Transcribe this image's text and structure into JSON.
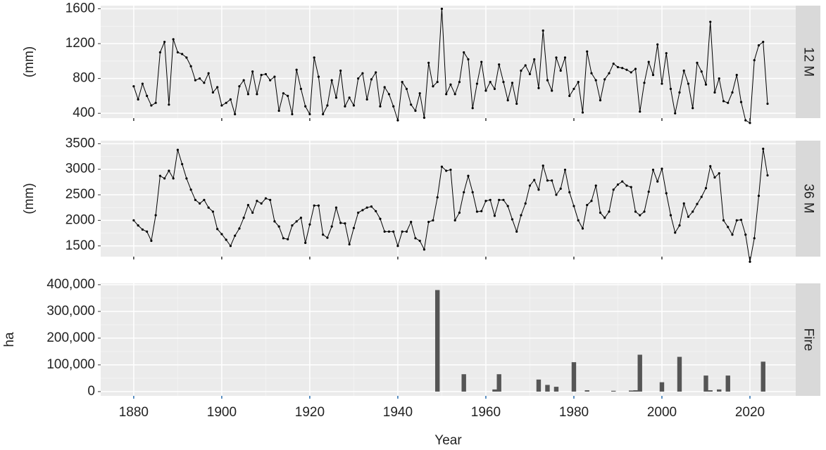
{
  "chart_data": [
    {
      "type": "line",
      "strip": "12 M",
      "ylabel": "(mm)",
      "color": "#000000",
      "x": [
        1880,
        1881,
        1882,
        1883,
        1884,
        1885,
        1886,
        1887,
        1888,
        1889,
        1890,
        1891,
        1892,
        1893,
        1894,
        1895,
        1896,
        1897,
        1898,
        1899,
        1900,
        1901,
        1902,
        1903,
        1904,
        1905,
        1906,
        1907,
        1908,
        1909,
        1910,
        1911,
        1912,
        1913,
        1914,
        1915,
        1916,
        1917,
        1918,
        1919,
        1920,
        1921,
        1922,
        1923,
        1924,
        1925,
        1926,
        1927,
        1928,
        1929,
        1930,
        1931,
        1932,
        1933,
        1934,
        1935,
        1936,
        1937,
        1938,
        1939,
        1940,
        1941,
        1942,
        1943,
        1944,
        1945,
        1946,
        1947,
        1948,
        1949,
        1950,
        1951,
        1952,
        1953,
        1954,
        1955,
        1956,
        1957,
        1958,
        1959,
        1960,
        1961,
        1962,
        1963,
        1964,
        1965,
        1966,
        1967,
        1968,
        1969,
        1970,
        1971,
        1972,
        1973,
        1974,
        1975,
        1976,
        1977,
        1978,
        1979,
        1980,
        1981,
        1982,
        1983,
        1984,
        1985,
        1986,
        1987,
        1988,
        1989,
        1990,
        1991,
        1992,
        1993,
        1994,
        1995,
        1996,
        1997,
        1998,
        1999,
        2000,
        2001,
        2002,
        2003,
        2004,
        2005,
        2006,
        2007,
        2008,
        2009,
        2010,
        2011,
        2012,
        2013,
        2014,
        2015,
        2016,
        2017,
        2018,
        2019,
        2020,
        2021,
        2022,
        2023,
        2024
      ],
      "values": [
        710,
        560,
        740,
        600,
        490,
        520,
        1100,
        1220,
        500,
        1250,
        1100,
        1080,
        1040,
        940,
        780,
        800,
        750,
        860,
        640,
        700,
        490,
        520,
        560,
        390,
        710,
        780,
        620,
        880,
        620,
        840,
        850,
        780,
        820,
        430,
        630,
        600,
        390,
        900,
        680,
        480,
        390,
        1040,
        820,
        390,
        490,
        780,
        580,
        890,
        480,
        580,
        490,
        800,
        860,
        560,
        790,
        870,
        480,
        700,
        620,
        480,
        320,
        760,
        680,
        500,
        430,
        630,
        350,
        980,
        710,
        760,
        1600,
        620,
        730,
        620,
        760,
        1100,
        1020,
        460,
        740,
        990,
        660,
        760,
        680,
        960,
        760,
        550,
        750,
        510,
        890,
        950,
        850,
        1020,
        690,
        1350,
        780,
        660,
        1040,
        890,
        1040,
        600,
        680,
        760,
        410,
        1110,
        860,
        780,
        550,
        790,
        860,
        970,
        930,
        920,
        900,
        870,
        910,
        420,
        750,
        990,
        840,
        1190,
        740,
        1090,
        680,
        400,
        640,
        890,
        740,
        460,
        980,
        880,
        730,
        1450,
        640,
        800,
        540,
        520,
        640,
        840,
        530,
        320,
        290,
        1010,
        1180,
        1220,
        510
      ],
      "xlim": [
        1872.5,
        2030.4
      ],
      "xticks": [
        1880,
        1900,
        1920,
        1940,
        1960,
        1980,
        2000,
        2020
      ],
      "ylim": [
        345,
        1636
      ],
      "yticks": [
        400,
        800,
        1200,
        1600
      ]
    },
    {
      "type": "line",
      "strip": "36 M",
      "ylabel": "(mm)",
      "color": "#000000",
      "x": [
        1880,
        1881,
        1882,
        1883,
        1884,
        1885,
        1886,
        1887,
        1888,
        1889,
        1890,
        1891,
        1892,
        1893,
        1894,
        1895,
        1896,
        1897,
        1898,
        1899,
        1900,
        1901,
        1902,
        1903,
        1904,
        1905,
        1906,
        1907,
        1908,
        1909,
        1910,
        1911,
        1912,
        1913,
        1914,
        1915,
        1916,
        1917,
        1918,
        1919,
        1920,
        1921,
        1922,
        1923,
        1924,
        1925,
        1926,
        1927,
        1928,
        1929,
        1930,
        1931,
        1932,
        1933,
        1934,
        1935,
        1936,
        1937,
        1938,
        1939,
        1940,
        1941,
        1942,
        1943,
        1944,
        1945,
        1946,
        1947,
        1948,
        1949,
        1950,
        1951,
        1952,
        1953,
        1954,
        1955,
        1956,
        1957,
        1958,
        1959,
        1960,
        1961,
        1962,
        1963,
        1964,
        1965,
        1966,
        1967,
        1968,
        1969,
        1970,
        1971,
        1972,
        1973,
        1974,
        1975,
        1976,
        1977,
        1978,
        1979,
        1980,
        1981,
        1982,
        1983,
        1984,
        1985,
        1986,
        1987,
        1988,
        1989,
        1990,
        1991,
        1992,
        1993,
        1994,
        1995,
        1996,
        1997,
        1998,
        1999,
        2000,
        2001,
        2002,
        2003,
        2004,
        2005,
        2006,
        2007,
        2008,
        2009,
        2010,
        2011,
        2012,
        2013,
        2014,
        2015,
        2016,
        2017,
        2018,
        2019,
        2020,
        2021,
        2022,
        2023,
        2024
      ],
      "values": [
        2000,
        1900,
        1820,
        1780,
        1600,
        2100,
        2870,
        2820,
        2970,
        2820,
        3380,
        3100,
        2820,
        2600,
        2400,
        2330,
        2400,
        2250,
        2170,
        1830,
        1730,
        1620,
        1500,
        1700,
        1840,
        2050,
        2300,
        2150,
        2380,
        2330,
        2430,
        2400,
        1980,
        1880,
        1650,
        1630,
        1900,
        1980,
        2050,
        1560,
        1920,
        2290,
        2290,
        1720,
        1660,
        1880,
        2250,
        1950,
        1940,
        1530,
        1850,
        2150,
        2200,
        2250,
        2270,
        2180,
        2030,
        1780,
        1780,
        1780,
        1500,
        1780,
        1780,
        1970,
        1650,
        1600,
        1430,
        1970,
        2000,
        2450,
        3050,
        2970,
        2990,
        2000,
        2150,
        2550,
        2870,
        2550,
        2170,
        2180,
        2380,
        2400,
        2090,
        2400,
        2400,
        2280,
        2020,
        1780,
        2100,
        2330,
        2680,
        2790,
        2600,
        3070,
        2780,
        2780,
        2500,
        2620,
        2990,
        2550,
        2280,
        2000,
        1840,
        2300,
        2380,
        2680,
        2150,
        2050,
        2170,
        2600,
        2700,
        2760,
        2680,
        2650,
        2170,
        2100,
        2170,
        2560,
        2990,
        2760,
        3010,
        2530,
        2100,
        1760,
        1900,
        2330,
        2070,
        2170,
        2320,
        2460,
        2630,
        3060,
        2840,
        2920,
        2000,
        1870,
        1720,
        2000,
        2010,
        1720,
        1190,
        1650,
        2480,
        3400,
        2880
      ],
      "xlim": [
        1872.5,
        2030.4
      ],
      "xticks": [
        1880,
        1900,
        1920,
        1940,
        1960,
        1980,
        2000,
        2020
      ],
      "ylim": [
        1290,
        3560
      ],
      "yticks": [
        1500,
        2000,
        2500,
        3000,
        3500
      ]
    },
    {
      "type": "bar",
      "strip": "Fire",
      "ylabel": "ha",
      "xlabel": "Year",
      "color": "#555555",
      "x": [
        1949,
        1955,
        1962,
        1963,
        1972,
        1974,
        1976,
        1980,
        1983,
        1989,
        1993,
        1994,
        1995,
        2000,
        2004,
        2010,
        2011,
        2013,
        2015,
        2023
      ],
      "values": [
        380000,
        65000,
        8000,
        65000,
        45000,
        25000,
        18000,
        110000,
        5000,
        3000,
        4000,
        5000,
        138000,
        35000,
        130000,
        60000,
        5000,
        8000,
        60000,
        112000
      ],
      "xlim": [
        1872.5,
        2030.4
      ],
      "xticks": [
        1880,
        1900,
        1920,
        1940,
        1960,
        1980,
        2000,
        2020
      ],
      "ylim": [
        -16000,
        405000
      ],
      "yticks": [
        0,
        {
          "value": 100000,
          "label": "100,000"
        },
        {
          "value": 200000,
          "label": "200,000"
        },
        {
          "value": 300000,
          "label": "300,000"
        },
        {
          "value": 400000,
          "label": "400,000"
        }
      ]
    }
  ]
}
